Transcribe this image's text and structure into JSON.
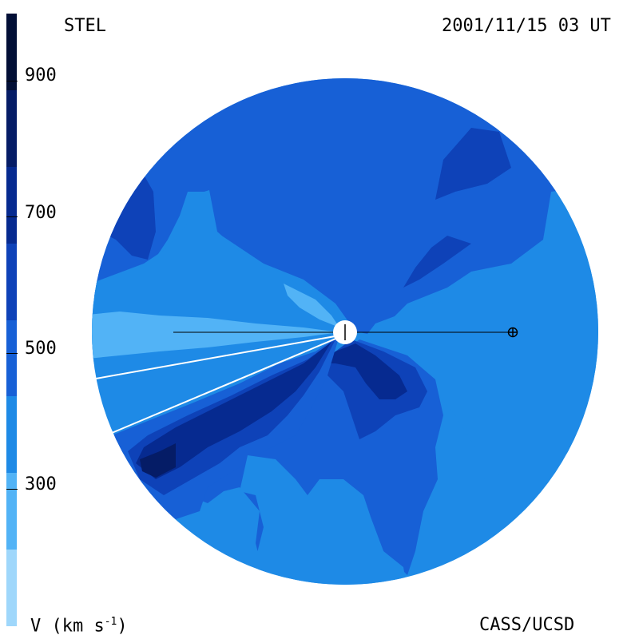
{
  "header": {
    "left_title": "STEL",
    "right_title": "2001/11/15 03 UT"
  },
  "footer": {
    "unit_label_main": "V (km s",
    "unit_label_sup": "-1",
    "unit_label_close": ")",
    "credit": "CASS/UCSD"
  },
  "colorbar": {
    "ticks": [
      "900",
      "700",
      "500",
      "300"
    ],
    "colors": [
      "#9fd7fb",
      "#52b3f6",
      "#1e8ae6",
      "#1760d6",
      "#0e42b8",
      "#062a90",
      "#051c66",
      "#020f36"
    ]
  },
  "diagram": {
    "type": "solar-wind-velocity-map",
    "sun_icon": "sun-disk",
    "earth_icon": "earth-symbol"
  }
}
